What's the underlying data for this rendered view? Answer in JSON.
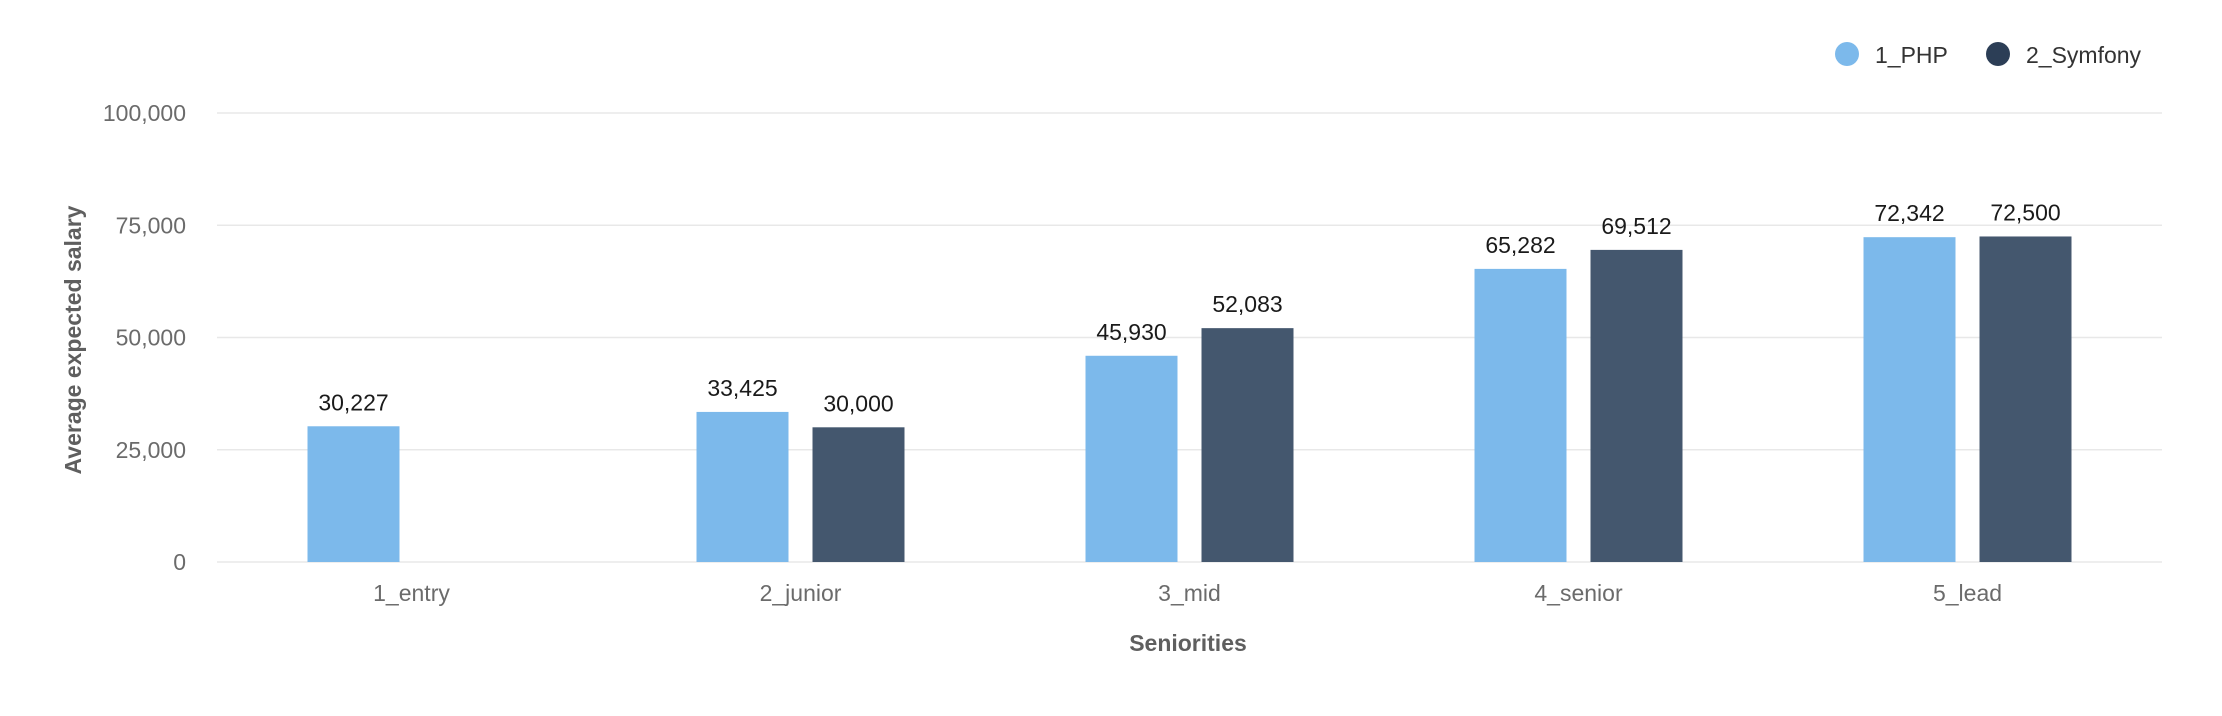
{
  "chart_data": {
    "type": "bar",
    "categories": [
      "1_entry",
      "2_junior",
      "3_mid",
      "4_senior",
      "5_lead"
    ],
    "series": [
      {
        "name": "1_PHP",
        "color": "#7cb9eb",
        "values": [
          30227,
          33425,
          45930,
          65282,
          72342
        ]
      },
      {
        "name": "2_Symfony",
        "color": "#44576e",
        "values": [
          null,
          30000,
          52083,
          69512,
          72500
        ]
      }
    ],
    "data_labels": [
      [
        "30,227",
        "33,425",
        "45,930",
        "65,282",
        "72,342"
      ],
      [
        null,
        "30,000",
        "52,083",
        "69,512",
        "72,500"
      ]
    ],
    "xlabel": "Seniorities",
    "ylabel": "Average expected salary",
    "ylim": [
      0,
      100000
    ],
    "yticks": [
      0,
      25000,
      50000,
      75000,
      100000
    ],
    "ytick_labels": [
      "0",
      "25,000",
      "50,000",
      "75,000",
      "100,000"
    ],
    "grid": true,
    "legend_position": "top-right",
    "legend_marker_colors": [
      "#7cb9eb",
      "#2c3e56"
    ],
    "gridline_color": "#e8e8e8"
  }
}
